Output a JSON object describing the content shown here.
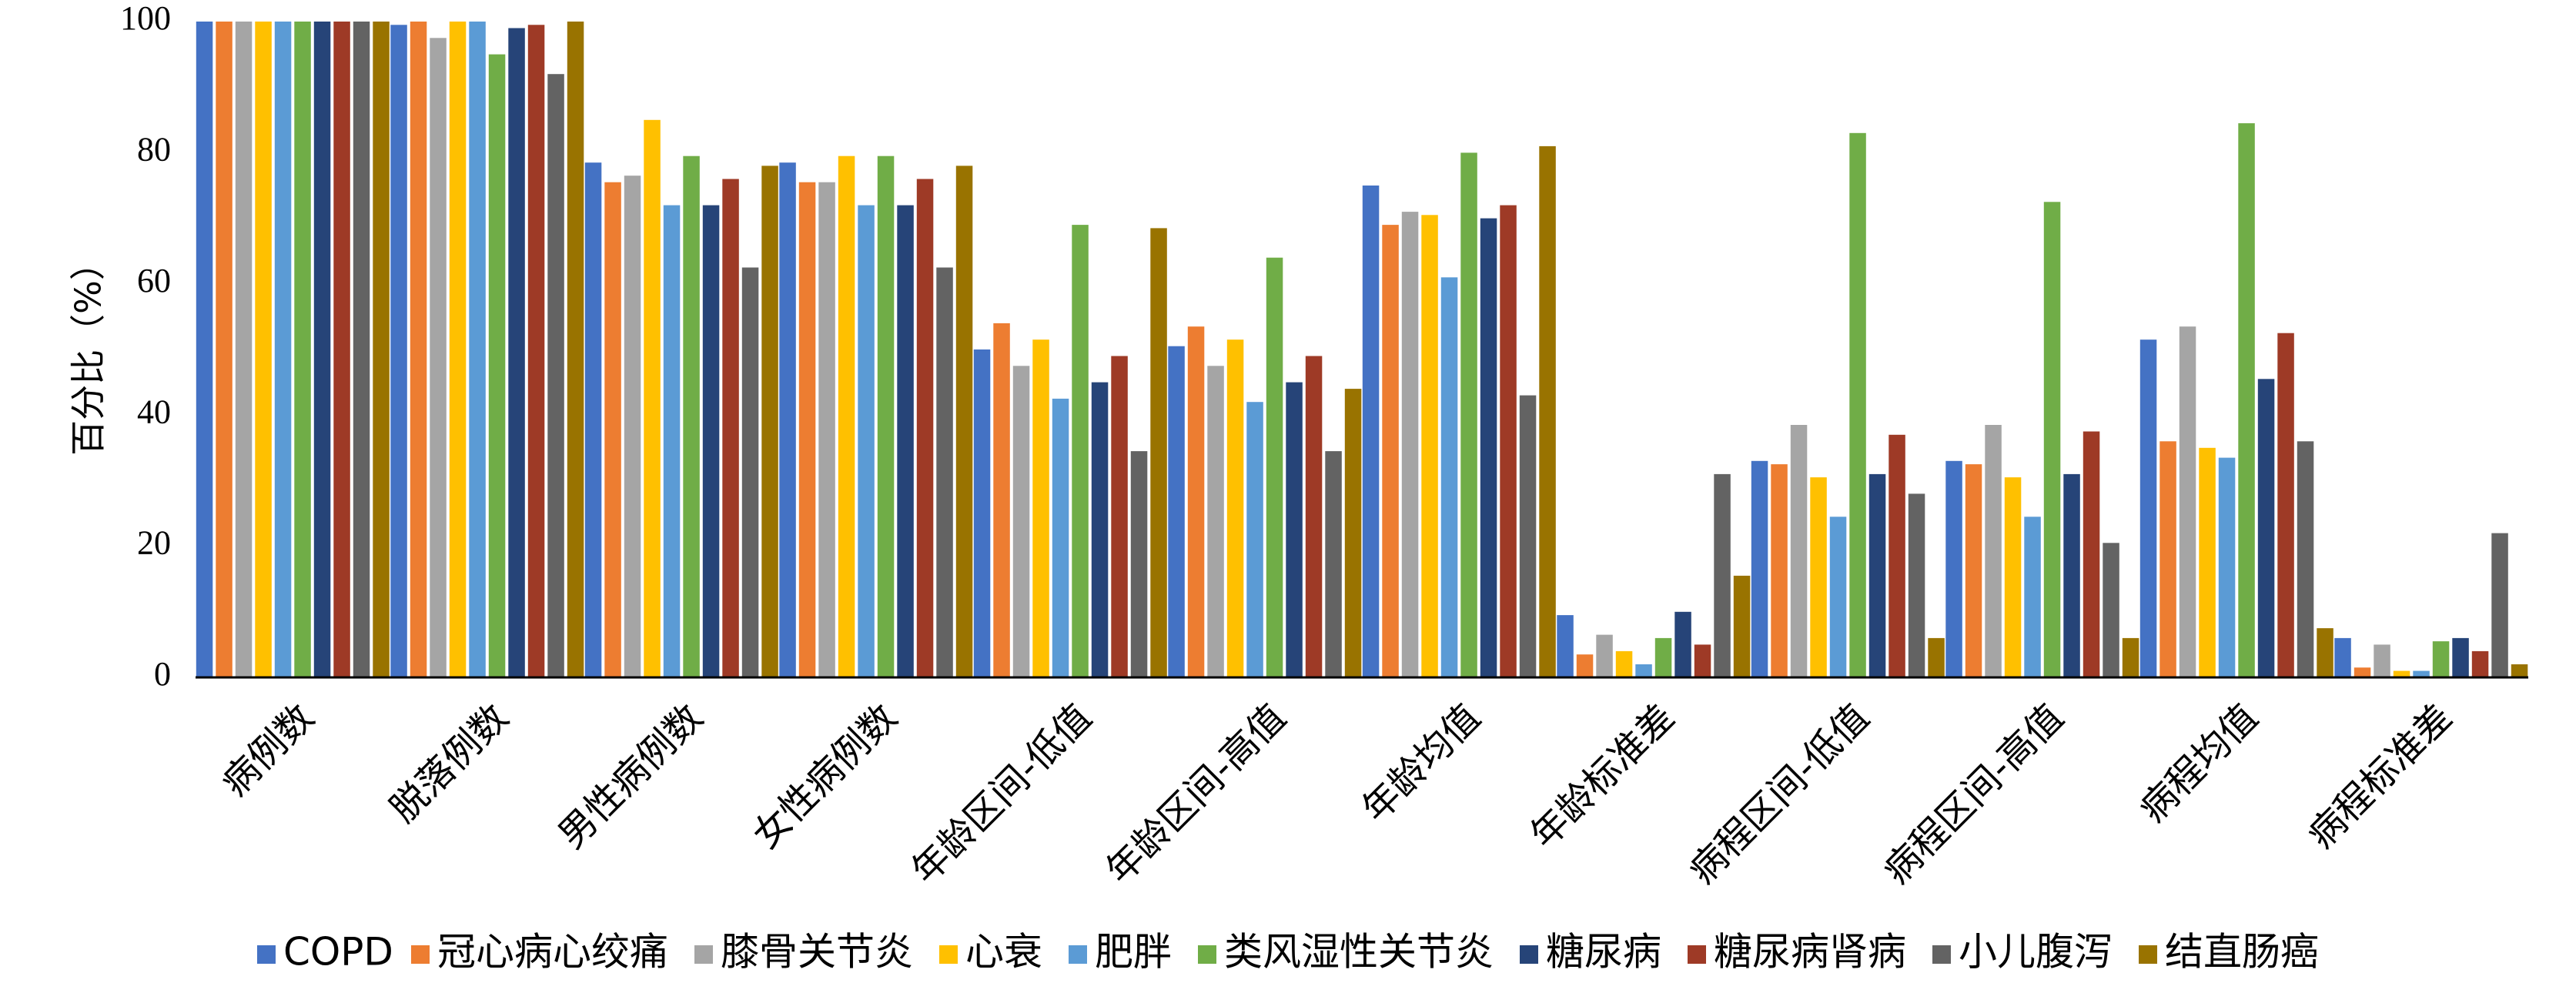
{
  "chart_data": {
    "type": "bar",
    "ylabel": "百分比（%）",
    "ylim": [
      0,
      100
    ],
    "yticks": [
      0,
      20,
      40,
      60,
      80,
      100
    ],
    "grid": false,
    "legend_position": "bottom",
    "categories": [
      "病例数",
      "脱落例数",
      "男性病例数",
      "女性病例数",
      "年龄区间-低值",
      "年龄区间-高值",
      "年龄均值",
      "年龄标准差",
      "病程区间-低值",
      "病程区间-高值",
      "病程均值",
      "病程标准差"
    ],
    "series": [
      {
        "name": "COPD",
        "color": "#4472C4",
        "values": [
          100,
          99.5,
          78.5,
          78.5,
          50,
          50.5,
          75,
          9.5,
          33,
          33,
          51.5,
          6
        ]
      },
      {
        "name": "冠心病心绞痛",
        "color": "#ED7D31",
        "values": [
          100,
          100,
          75.5,
          75.5,
          54,
          53.5,
          69,
          3.5,
          32.5,
          32.5,
          36,
          1.5
        ]
      },
      {
        "name": "膝骨关节炎",
        "color": "#A5A5A5",
        "values": [
          100,
          97.5,
          76.5,
          75.5,
          47.5,
          47.5,
          71,
          6.5,
          38.5,
          38.5,
          53.5,
          5
        ]
      },
      {
        "name": "心衰",
        "color": "#FFC000",
        "values": [
          100,
          100,
          85,
          79.5,
          51.5,
          51.5,
          70.5,
          4,
          30.5,
          30.5,
          35,
          1
        ]
      },
      {
        "name": "肥胖",
        "color": "#5B9BD5",
        "values": [
          100,
          100,
          72,
          72,
          42.5,
          42,
          61,
          2,
          24.5,
          24.5,
          33.5,
          1
        ]
      },
      {
        "name": "类风湿性关节炎",
        "color": "#70AD47",
        "values": [
          100,
          95,
          79.5,
          79.5,
          69,
          64,
          80,
          6,
          83,
          72.5,
          84.5,
          5.5
        ]
      },
      {
        "name": "糖尿病",
        "color": "#264478",
        "values": [
          100,
          99,
          72,
          72,
          45,
          45,
          70,
          10,
          31,
          31,
          45.5,
          6
        ]
      },
      {
        "name": "糖尿病肾病",
        "color": "#9E3A26",
        "values": [
          100,
          99.5,
          76,
          76,
          49,
          49,
          72,
          5,
          37,
          37.5,
          52.5,
          4
        ]
      },
      {
        "name": "小儿腹泻",
        "color": "#636363",
        "values": [
          100,
          92,
          62.5,
          62.5,
          34.5,
          34.5,
          43,
          31,
          28,
          20.5,
          36,
          22
        ]
      },
      {
        "name": "结直肠癌",
        "color": "#997300",
        "values": [
          100,
          100,
          78,
          78,
          68.5,
          44,
          81,
          15.5,
          6,
          6,
          7.5,
          2
        ]
      }
    ]
  }
}
